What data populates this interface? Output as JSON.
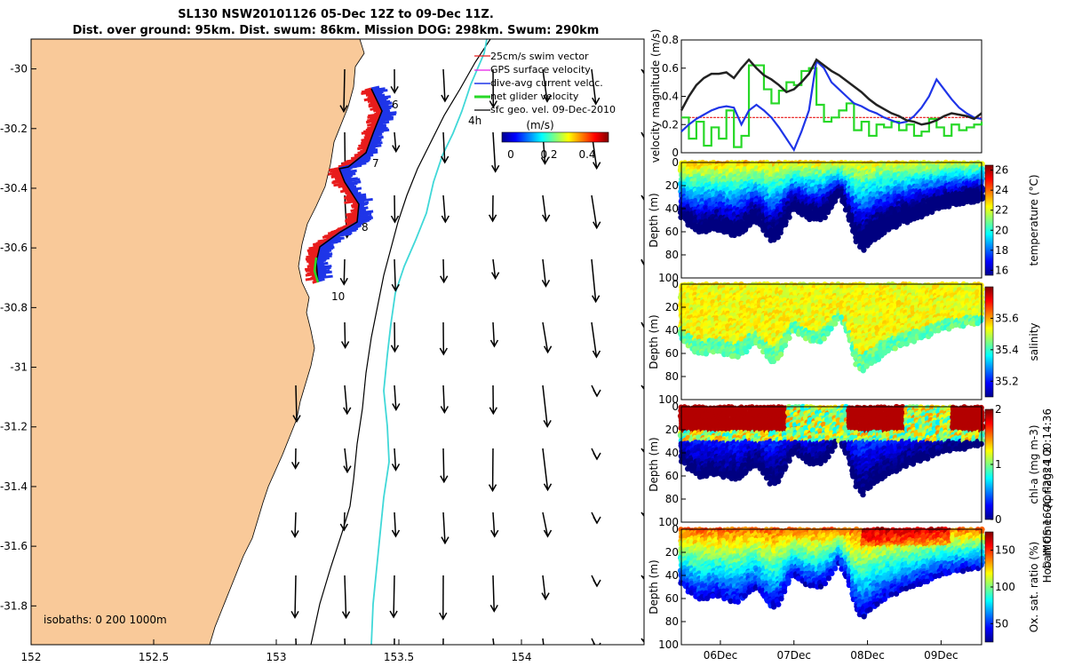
{
  "title": {
    "line1": "SL130 NSW20101126 05-Dec 12Z to 09-Dec 11Z.",
    "line2": "Dist. over ground: 95km. Dist. swum: 86km. Mission DOG: 298km. Swum: 290km"
  },
  "colors": {
    "land": "#f9c999",
    "ocean": "#ffffff",
    "surface": "#e81c1c",
    "dive": "#1f35e8",
    "fix": "#1fcc2c",
    "isobath_1000": "#40d8d8"
  },
  "map": {
    "legend": {
      "items": [
        "25cm/s swim vector",
        "GPS surface velocity",
        "dive-avg current veloc.",
        "net glider velocity",
        "sfc geo. vel. 09-Dec-2010"
      ],
      "colors": [
        "#e81c1c",
        "#e81ce8",
        "#1f35e8",
        "#27d827",
        "#000000"
      ]
    },
    "colorbar": {
      "title": "(m/s)",
      "ticks": [
        "0",
        "0.2",
        "0.4"
      ]
    },
    "isobaths_text": "isobaths: 0   200  1000m",
    "hour_label": "4h",
    "day_labels": [
      "6",
      "7",
      "8",
      "10"
    ],
    "xlim": [
      152,
      154.5
    ],
    "ylim": [
      -31.93,
      -29.9
    ],
    "xticks": [
      "152",
      "152.5",
      "153",
      "153.5",
      "154"
    ],
    "yticks": [
      "-30",
      "-30.2",
      "-30.4",
      "-30.6",
      "-30.8",
      "-31",
      "-31.2",
      "-31.4",
      "-31.6",
      "-31.8"
    ]
  },
  "chart_data": [
    {
      "type": "line",
      "title": "",
      "xlabel": "",
      "ylabel": "velocity magnitude (m/s)",
      "x": [
        0,
        0.1,
        0.2,
        0.3,
        0.4,
        0.5,
        0.6,
        0.7,
        0.8,
        0.9,
        1.0,
        1.1,
        1.2,
        1.3,
        1.4,
        1.5,
        1.6,
        1.7,
        1.8,
        1.9,
        2.0,
        2.1,
        2.2,
        2.3,
        2.4,
        2.5,
        2.6,
        2.7,
        2.8,
        2.9,
        3.0,
        3.1,
        3.2,
        3.3,
        3.4,
        3.5,
        3.6,
        3.7,
        3.8,
        3.9,
        4.0
      ],
      "ylim": [
        0,
        0.8
      ],
      "yticks": [
        "0",
        "0.2",
        "0.4",
        "0.6",
        "0.8"
      ],
      "series": [
        {
          "name": "sfc geo. vel.",
          "color": "#222222",
          "values": [
            0.3,
            0.4,
            0.48,
            0.53,
            0.56,
            0.56,
            0.57,
            0.53,
            0.6,
            0.66,
            0.6,
            0.55,
            0.52,
            0.48,
            0.43,
            0.45,
            0.5,
            0.56,
            0.66,
            0.62,
            0.58,
            0.55,
            0.51,
            0.47,
            0.43,
            0.38,
            0.34,
            0.31,
            0.28,
            0.26,
            0.23,
            0.22,
            0.2,
            0.21,
            0.23,
            0.26,
            0.28,
            0.27,
            0.26,
            0.24,
            0.28
          ]
        },
        {
          "name": "dive-avg current",
          "color": "#1f35e8",
          "values": [
            0.15,
            0.2,
            0.24,
            0.27,
            0.3,
            0.32,
            0.33,
            0.32,
            0.2,
            0.3,
            0.34,
            0.3,
            0.25,
            0.18,
            0.1,
            0.02,
            0.15,
            0.3,
            0.65,
            0.6,
            0.5,
            0.45,
            0.4,
            0.35,
            0.33,
            0.3,
            0.28,
            0.25,
            0.23,
            0.21,
            0.22,
            0.26,
            0.32,
            0.4,
            0.52,
            0.45,
            0.38,
            0.32,
            0.28,
            0.25,
            0.24
          ]
        },
        {
          "name": "net glider velocity",
          "color": "#27d827",
          "values": [
            0.25,
            0.1,
            0.22,
            0.05,
            0.18,
            0.1,
            0.3,
            0.04,
            0.12,
            0.62,
            0.62,
            0.45,
            0.35,
            0.44,
            0.5,
            0.48,
            0.58,
            0.6,
            0.34,
            0.22,
            0.25,
            0.3,
            0.35,
            0.16,
            0.22,
            0.12,
            0.2,
            0.18,
            0.22,
            0.16,
            0.2,
            0.12,
            0.15,
            0.24,
            0.18,
            0.12,
            0.2,
            0.16,
            0.18,
            0.2,
            0.22
          ]
        },
        {
          "name": "swim vector",
          "color": "#e81c1c",
          "values": [
            0.25,
            0.25,
            0.25,
            0.25,
            0.25,
            0.25,
            0.25,
            0.25,
            0.25,
            0.25,
            0.25,
            0.25,
            0.25,
            0.25,
            0.25,
            0.25,
            0.25,
            0.25,
            0.25,
            0.25,
            0.25,
            0.25,
            0.25,
            0.25,
            0.25,
            0.25,
            0.25,
            0.25,
            0.25,
            0.25,
            0.25,
            0.25,
            0.25,
            0.25,
            0.25,
            0.25,
            0.25,
            0.25,
            0.25,
            0.25,
            0.25
          ]
        }
      ]
    },
    {
      "type": "heatmap",
      "variable": "temperature",
      "ylabel": "Depth (m)",
      "cblabel": "temperature (°C)",
      "clim": [
        15.5,
        26.5
      ],
      "cbticks": [
        "16",
        "18",
        "20",
        "22",
        "24",
        "26"
      ],
      "yticks": [
        "0",
        "20",
        "40",
        "60",
        "80",
        "100"
      ],
      "ylim": [
        0,
        100
      ],
      "colorscale": "jet"
    },
    {
      "type": "heatmap",
      "variable": "salinity",
      "ylabel": "Depth (m)",
      "cblabel": "salinity",
      "clim": [
        35.1,
        35.8
      ],
      "cbticks": [
        "35.2",
        "35.4",
        "35.6"
      ],
      "yticks": [
        "0",
        "20",
        "40",
        "60",
        "80",
        "100"
      ],
      "ylim": [
        0,
        100
      ],
      "colorscale": "jet"
    },
    {
      "type": "heatmap",
      "variable": "chl-a",
      "ylabel": "Depth (m)",
      "cblabel": "chl-a (mg m-3)",
      "clim": [
        0,
        2
      ],
      "cbticks": [
        "0",
        "1",
        "2"
      ],
      "yticks": [
        "0",
        "20",
        "40",
        "60",
        "80",
        "100"
      ],
      "ylim": [
        0,
        100
      ],
      "colorscale": "jet"
    },
    {
      "type": "heatmap",
      "variable": "oxygen",
      "ylabel": "Depth (m)",
      "cblabel": "Ox. sat. ratio (%)",
      "clim": [
        25,
        175
      ],
      "cbticks": [
        "50",
        "100",
        "150"
      ],
      "yticks": [
        "0",
        "20",
        "40",
        "60",
        "80",
        "100"
      ],
      "ylim": [
        0,
        100
      ],
      "xticks": [
        "06Dec",
        "07Dec",
        "08Dec",
        "09Dec"
      ],
      "colorscale": "jet"
    }
  ],
  "side_text": {
    "qc": "Hobart time. QC flags 1  2",
    "credit": "© IMOS 16-Apr-2024 00:14:36"
  }
}
